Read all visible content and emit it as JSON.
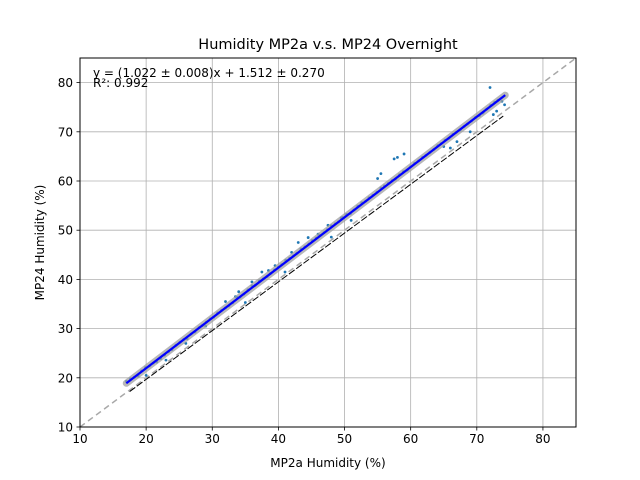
{
  "chart_data": {
    "type": "scatter",
    "title": "Humidity MP2a v.s. MP24 Overnight",
    "xlabel": "MP2a Humidity (%)",
    "ylabel": "MP24 Humidity (%)",
    "xlim": [
      10,
      85
    ],
    "ylim": [
      10,
      85
    ],
    "x_ticks": [
      10,
      20,
      30,
      40,
      50,
      60,
      70,
      80
    ],
    "y_ticks": [
      10,
      20,
      30,
      40,
      50,
      60,
      70,
      80
    ],
    "grid": true,
    "annotations": {
      "equation": "y = (1.022 ± 0.008)x + 1.512 ± 0.270",
      "r_squared": "R²: 0.992"
    },
    "fit": {
      "slope": 1.022,
      "intercept": 1.512,
      "x_range": [
        17,
        74.3
      ]
    },
    "identity_line": {
      "x_range": [
        10,
        85
      ]
    },
    "lower_line": {
      "points": [
        [
          17.5,
          17.2
        ],
        [
          74,
          73.2
        ]
      ]
    },
    "series": [
      {
        "x": [
          17.0,
          17.6,
          18.2,
          18.8,
          19.3,
          19.9,
          20.5,
          21.1,
          21.6,
          22.2,
          22.8,
          23.4,
          23.9,
          24.5,
          25.1,
          25.7,
          26.2,
          26.8,
          27.4,
          28.0,
          28.5,
          29.1,
          29.7,
          30.2,
          30.8,
          31.4,
          32.0,
          32.5,
          33.1,
          33.7,
          34.2,
          34.8,
          35.4,
          36.0,
          36.5,
          37.1,
          37.7,
          38.3,
          38.8,
          39.4,
          40.0,
          40.5,
          41.1,
          41.7,
          42.3,
          42.8,
          43.4,
          44.0,
          44.6,
          45.1,
          45.7,
          46.3,
          46.9,
          47.4,
          48.0,
          48.6,
          49.1,
          49.7,
          50.3,
          50.9,
          51.4,
          52.0,
          52.6,
          53.2,
          53.7,
          54.3,
          54.9,
          55.5,
          56.0,
          56.6,
          57.2,
          57.7,
          58.3,
          58.9,
          59.5,
          60.0,
          60.6,
          61.2,
          61.8,
          62.3,
          62.9,
          63.5,
          64.1,
          64.6,
          65.2,
          65.8,
          66.4,
          66.9,
          67.5,
          68.1,
          68.6,
          69.2,
          69.8,
          70.4,
          70.9,
          71.5,
          72.1,
          72.7,
          73.2,
          73.8,
          74.2,
          32.0,
          33.5,
          34.0,
          36.0,
          37.5,
          38.5,
          39.5,
          42.0,
          43.0,
          44.5,
          46.0,
          47.5,
          49.5,
          55.0,
          55.5,
          57.5,
          58.0,
          59.0,
          65.0,
          67.0,
          71.0,
          72.0,
          73.0,
          20.0,
          23.0,
          26.0,
          29.0,
          35.0,
          41.0,
          48.0,
          51.0,
          66.0,
          69.0,
          72.5
        ],
        "y": [
          19.3,
          19.8,
          20.1,
          20.4,
          21.4,
          22.1,
          22.4,
          23.0,
          23.2,
          23.9,
          24.6,
          25.3,
          25.7,
          26.6,
          27.2,
          27.8,
          27.9,
          28.9,
          29.3,
          30.2,
          30.6,
          31.3,
          32.0,
          32.3,
          33.2,
          33.7,
          34.2,
          34.6,
          35.2,
          36.4,
          36.4,
          37.0,
          37.9,
          38.7,
          38.8,
          39.7,
          40.1,
          40.6,
          41.2,
          41.9,
          42.5,
          43.0,
          43.9,
          44.3,
          44.8,
          45.3,
          46.2,
          46.6,
          47.2,
          47.9,
          48.4,
          48.9,
          49.5,
          50.1,
          50.9,
          51.3,
          51.7,
          52.6,
          53.2,
          53.4,
          54.1,
          54.9,
          55.6,
          55.9,
          56.6,
          57.1,
          57.7,
          58.6,
          59.0,
          59.5,
          60.1,
          60.4,
          61.3,
          61.9,
          62.2,
          62.9,
          63.6,
          64.1,
          64.8,
          65.2,
          65.8,
          66.4,
          67.2,
          67.6,
          68.3,
          68.7,
          69.5,
          69.9,
          70.4,
          71.1,
          71.6,
          72.2,
          72.9,
          73.3,
          73.8,
          74.6,
          75.4,
          76.0,
          76.4,
          76.2,
          75.5,
          35.5,
          36.5,
          37.5,
          39.5,
          41.5,
          41.8,
          42.8,
          45.5,
          47.5,
          48.5,
          49.2,
          51.0,
          52.5,
          60.5,
          61.5,
          64.5,
          64.8,
          65.5,
          67.0,
          68.0,
          74.0,
          79.0,
          74.2,
          20.5,
          23.6,
          27.0,
          30.5,
          35.3,
          41.5,
          48.6,
          52.0,
          66.7,
          70.0,
          73.5
        ]
      }
    ]
  }
}
